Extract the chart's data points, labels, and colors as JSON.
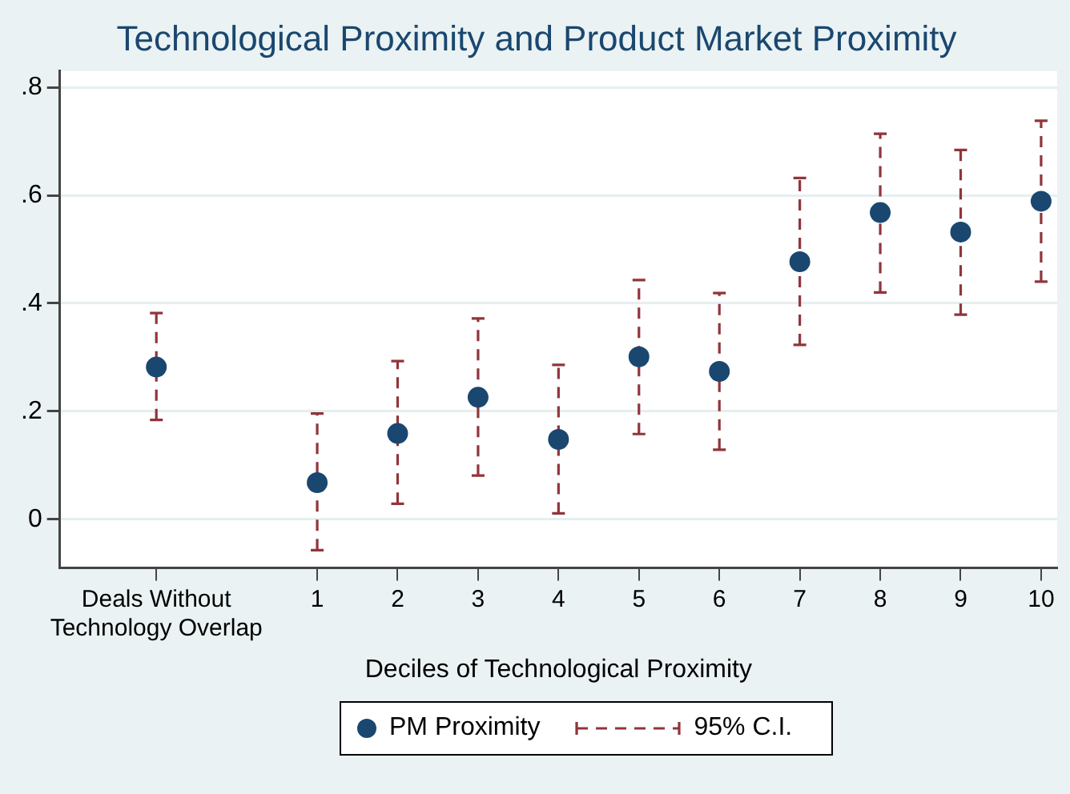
{
  "chart_data": {
    "type": "scatter",
    "title": "Technological Proximity and Product Market Proximity",
    "xlabel": "Deciles of Technological Proximity",
    "x": [
      -1,
      1,
      2,
      3,
      4,
      5,
      6,
      7,
      8,
      9,
      10
    ],
    "series": [
      {
        "name": "PM Proximity",
        "color": "#1a476f",
        "values": [
          0.282,
          0.068,
          0.159,
          0.226,
          0.148,
          0.301,
          0.274,
          0.477,
          0.568,
          0.532,
          0.589
        ],
        "errors": [
          [
            0.184,
            0.382
          ],
          [
            -0.057,
            0.196
          ],
          [
            0.029,
            0.293
          ],
          [
            0.081,
            0.372
          ],
          [
            0.011,
            0.286
          ],
          [
            0.158,
            0.443
          ],
          [
            0.129,
            0.419
          ],
          [
            0.323,
            0.632
          ],
          [
            0.42,
            0.714
          ],
          [
            0.379,
            0.684
          ],
          [
            0.44,
            0.738
          ]
        ]
      }
    ],
    "annotations": [
      "95% C.I."
    ],
    "xlim": [
      -2.2,
      10.2
    ],
    "xticks": [
      {
        "value": -1,
        "label": "Deals Without\nTechnology Overlap"
      },
      1,
      2,
      3,
      4,
      5,
      6,
      7,
      8,
      9,
      10
    ],
    "ylim": [
      -0.09,
      0.83
    ],
    "yticks": [
      0,
      {
        "value": 0.2,
        "label": ".2"
      },
      {
        "value": 0.4,
        "label": ".4"
      },
      {
        "value": 0.6,
        "label": ".6"
      },
      {
        "value": 0.8,
        "label": ".8"
      }
    ],
    "grid": "y",
    "legend": "bottom",
    "marker": "circle",
    "line_style": "dashed"
  }
}
